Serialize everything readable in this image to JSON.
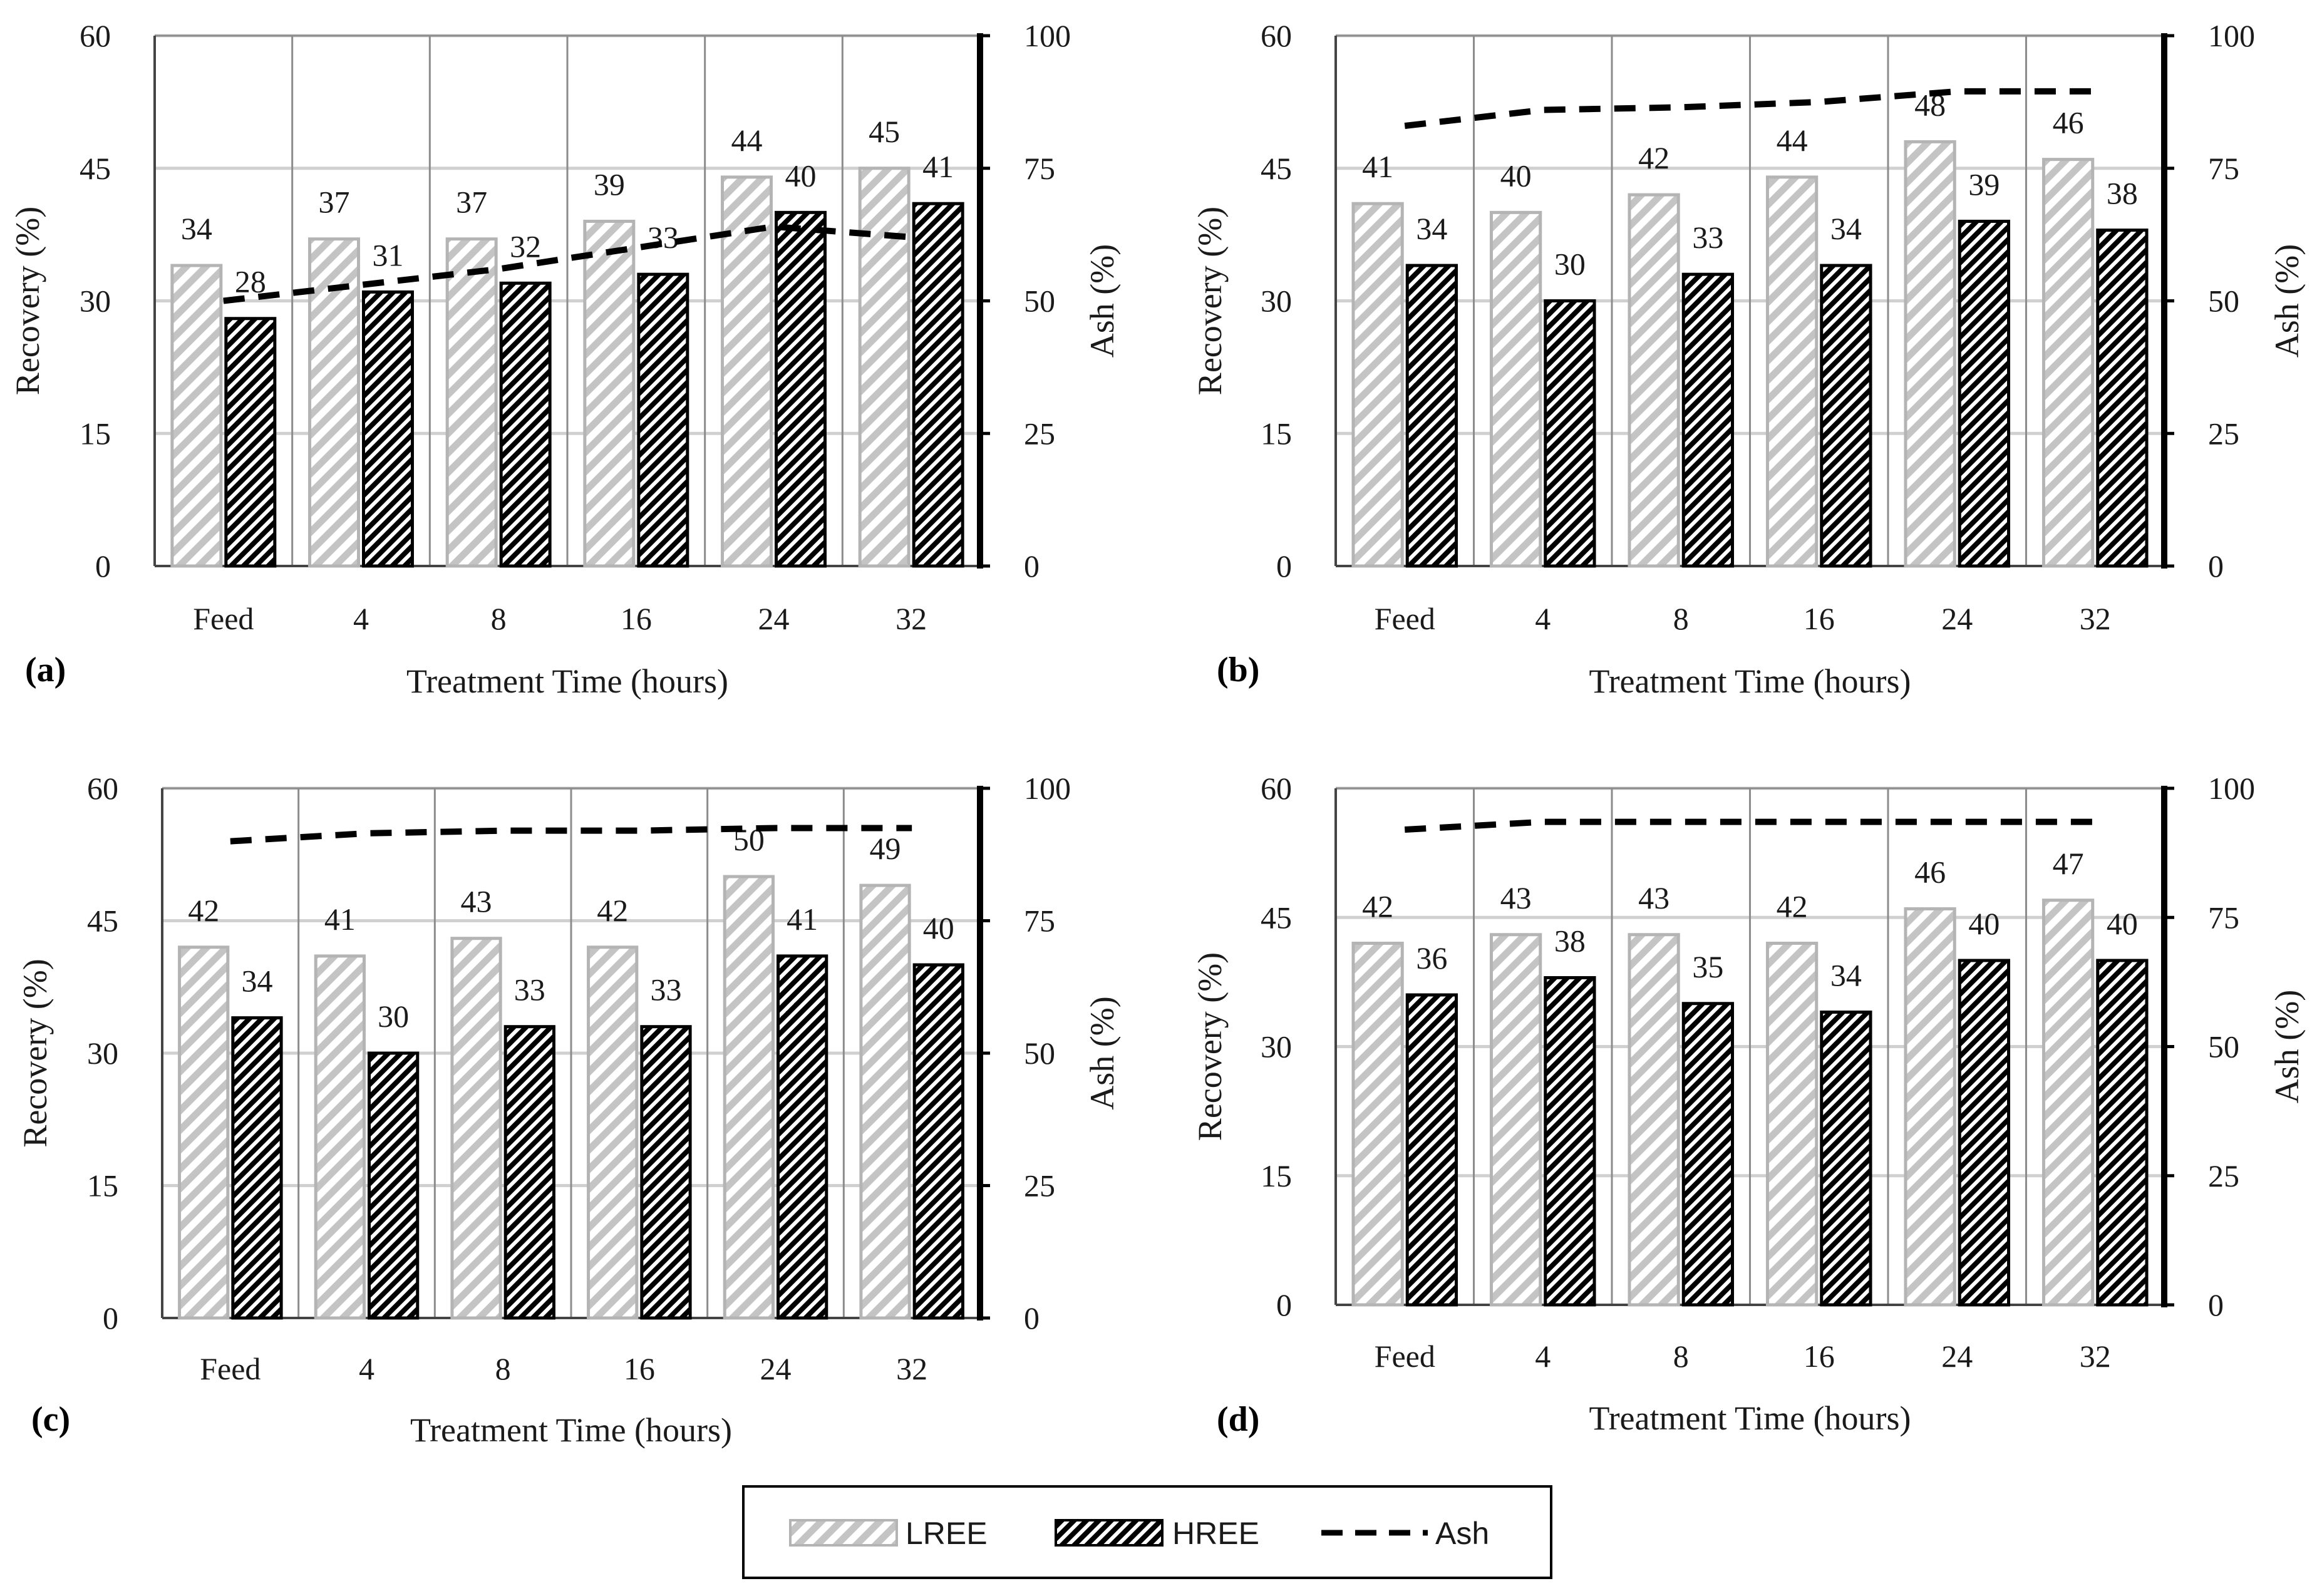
{
  "chart_data": [
    {
      "panel": "(a)",
      "type": "bar",
      "categories": [
        "Feed",
        "4",
        "8",
        "16",
        "24",
        "32"
      ],
      "xlabel": "Treatment Time (hours)",
      "ylabel": "Recovery (%)",
      "y2label": "Ash (%)",
      "ylim": [
        0,
        60
      ],
      "yticks": [
        0,
        15,
        30,
        45,
        60
      ],
      "y2lim": [
        0,
        100
      ],
      "y2ticks": [
        0,
        25,
        50,
        75,
        100
      ],
      "series": [
        {
          "name": "LREE",
          "values": [
            34,
            37,
            37,
            39,
            44,
            45
          ]
        },
        {
          "name": "HREE",
          "values": [
            28,
            31,
            32,
            33,
            40,
            41
          ]
        },
        {
          "name": "Ash",
          "axis": "secondary",
          "type": "line",
          "values": [
            50,
            53,
            56,
            60,
            64,
            62
          ]
        }
      ]
    },
    {
      "panel": "(b)",
      "type": "bar",
      "categories": [
        "Feed",
        "4",
        "8",
        "16",
        "24",
        "32"
      ],
      "xlabel": "Treatment Time (hours)",
      "ylabel": "Recovery (%)",
      "y2label": "Ash (%)",
      "ylim": [
        0,
        60
      ],
      "yticks": [
        0,
        15,
        30,
        45,
        60
      ],
      "y2lim": [
        0,
        100
      ],
      "y2ticks": [
        0,
        25,
        50,
        75,
        100
      ],
      "series": [
        {
          "name": "LREE",
          "values": [
            41,
            40,
            42,
            44,
            48,
            46
          ]
        },
        {
          "name": "HREE",
          "values": [
            34,
            30,
            33,
            34,
            39,
            38
          ]
        },
        {
          "name": "Ash",
          "axis": "secondary",
          "type": "line",
          "values": [
            83,
            86,
            86.5,
            87.5,
            89.5,
            89.5
          ]
        }
      ]
    },
    {
      "panel": "(c)",
      "type": "bar",
      "categories": [
        "Feed",
        "4",
        "8",
        "16",
        "24",
        "32"
      ],
      "xlabel": "Treatment Time (hours)",
      "ylabel": "Recovery (%)",
      "y2label": "Ash (%)",
      "ylim": [
        0,
        60
      ],
      "yticks": [
        0,
        15,
        30,
        45,
        60
      ],
      "y2lim": [
        0,
        100
      ],
      "y2ticks": [
        0,
        25,
        50,
        75,
        100
      ],
      "series": [
        {
          "name": "LREE",
          "values": [
            42,
            41,
            43,
            42,
            50,
            49
          ]
        },
        {
          "name": "HREE",
          "values": [
            34,
            30,
            33,
            33,
            41,
            40
          ]
        },
        {
          "name": "Ash",
          "axis": "secondary",
          "type": "line",
          "values": [
            90,
            91.5,
            92,
            92,
            92.5,
            92.5
          ]
        }
      ]
    },
    {
      "panel": "(d)",
      "type": "bar",
      "categories": [
        "Feed",
        "4",
        "8",
        "16",
        "24",
        "32"
      ],
      "xlabel": "Treatment Time (hours)",
      "ylabel": "Recovery (%)",
      "y2label": "Ash (%)",
      "ylim": [
        0,
        60
      ],
      "yticks": [
        0,
        15,
        30,
        45,
        60
      ],
      "y2lim": [
        0,
        100
      ],
      "y2ticks": [
        0,
        25,
        50,
        75,
        100
      ],
      "series": [
        {
          "name": "LREE",
          "values": [
            42,
            43,
            43,
            42,
            46,
            47
          ]
        },
        {
          "name": "HREE",
          "values": [
            36,
            38,
            35,
            34,
            40,
            40
          ]
        },
        {
          "name": "Ash",
          "axis": "secondary",
          "type": "line",
          "values": [
            92,
            93.5,
            93.5,
            93.5,
            93.5,
            93.5
          ]
        }
      ]
    }
  ],
  "legend": {
    "items": [
      {
        "label": "LREE",
        "style": "light-hatch"
      },
      {
        "label": "HREE",
        "style": "dark-hatch"
      },
      {
        "label": "Ash",
        "style": "dashed-line"
      }
    ]
  },
  "colors": {
    "lree_stroke": "#b4b4b4",
    "hree_stroke": "#000000",
    "ash_line": "#000000",
    "grid": "#d0d0d0"
  }
}
